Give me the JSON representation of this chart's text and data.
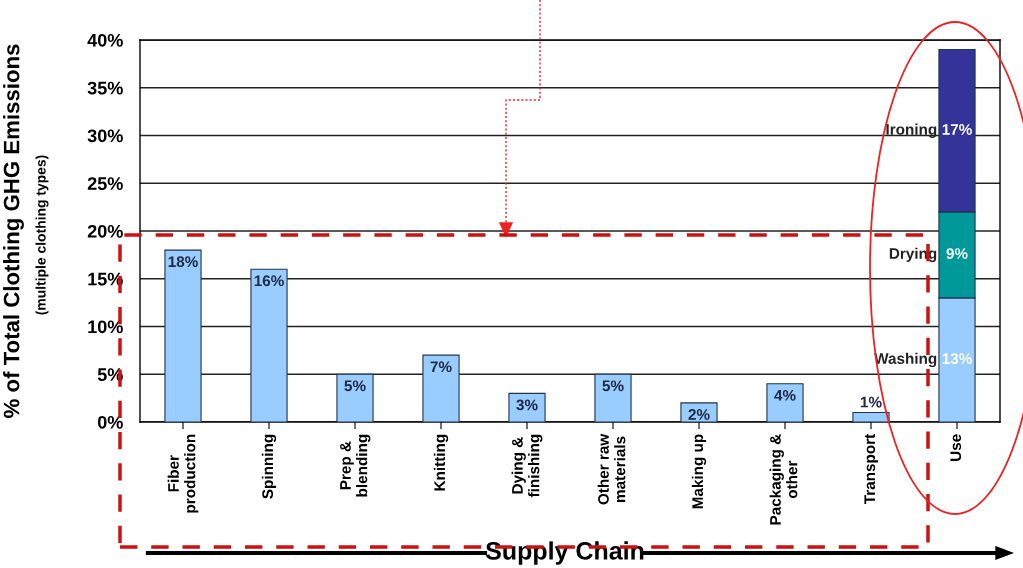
{
  "chart_data": {
    "type": "bar",
    "stacked": true,
    "ylabel": "% of Total Clothing GHG Emissions",
    "xlabel": "Supply Chain",
    "annotations": [
      "(multiple clothing types)"
    ],
    "categories": [
      "Fiber\nproduction",
      "Spinning",
      "Prep &\nblending",
      "Knitting",
      "Dying &\nfinishing",
      "Other raw\nmaterials",
      "Making up",
      "Packaging &\nother",
      "Transport",
      "Use"
    ],
    "series": [
      {
        "color": "#99ccff",
        "values": [
          18,
          16,
          5,
          7,
          3,
          5,
          2,
          4,
          1,
          null
        ],
        "value_labels": [
          "18%",
          "16%",
          "5%",
          "7%",
          "3%",
          "5%",
          "2%",
          "4%",
          "1%",
          null
        ]
      },
      {
        "name": "Washing",
        "color": "#99ccff",
        "values": [
          null,
          null,
          null,
          null,
          null,
          null,
          null,
          null,
          null,
          13
        ],
        "value_labels": [
          null,
          null,
          null,
          null,
          null,
          null,
          null,
          null,
          null,
          "13%"
        ]
      },
      {
        "name": "Drying",
        "color": "#009999",
        "values": [
          null,
          null,
          null,
          null,
          null,
          null,
          null,
          null,
          null,
          9
        ],
        "value_labels": [
          null,
          null,
          null,
          null,
          null,
          null,
          null,
          null,
          null,
          "9%"
        ]
      },
      {
        "name": "Ironing",
        "color": "#333399",
        "values": [
          null,
          null,
          null,
          null,
          null,
          null,
          null,
          null,
          null,
          17
        ],
        "value_labels": [
          null,
          null,
          null,
          null,
          null,
          null,
          null,
          null,
          null,
          "17%"
        ]
      }
    ],
    "ylim": [
      0,
      40
    ],
    "yticks": [
      {
        "value": 0,
        "label": "0%"
      },
      {
        "value": 5,
        "label": "5%"
      },
      {
        "value": 10,
        "label": "10%"
      },
      {
        "value": 15,
        "label": "15%"
      },
      {
        "value": 20,
        "label": "20%"
      },
      {
        "value": 25,
        "label": "25%"
      },
      {
        "value": 30,
        "label": "30%"
      },
      {
        "value": 35,
        "label": "35%"
      },
      {
        "value": 40,
        "label": "40%"
      }
    ],
    "grid": "y",
    "legend": false
  }
}
